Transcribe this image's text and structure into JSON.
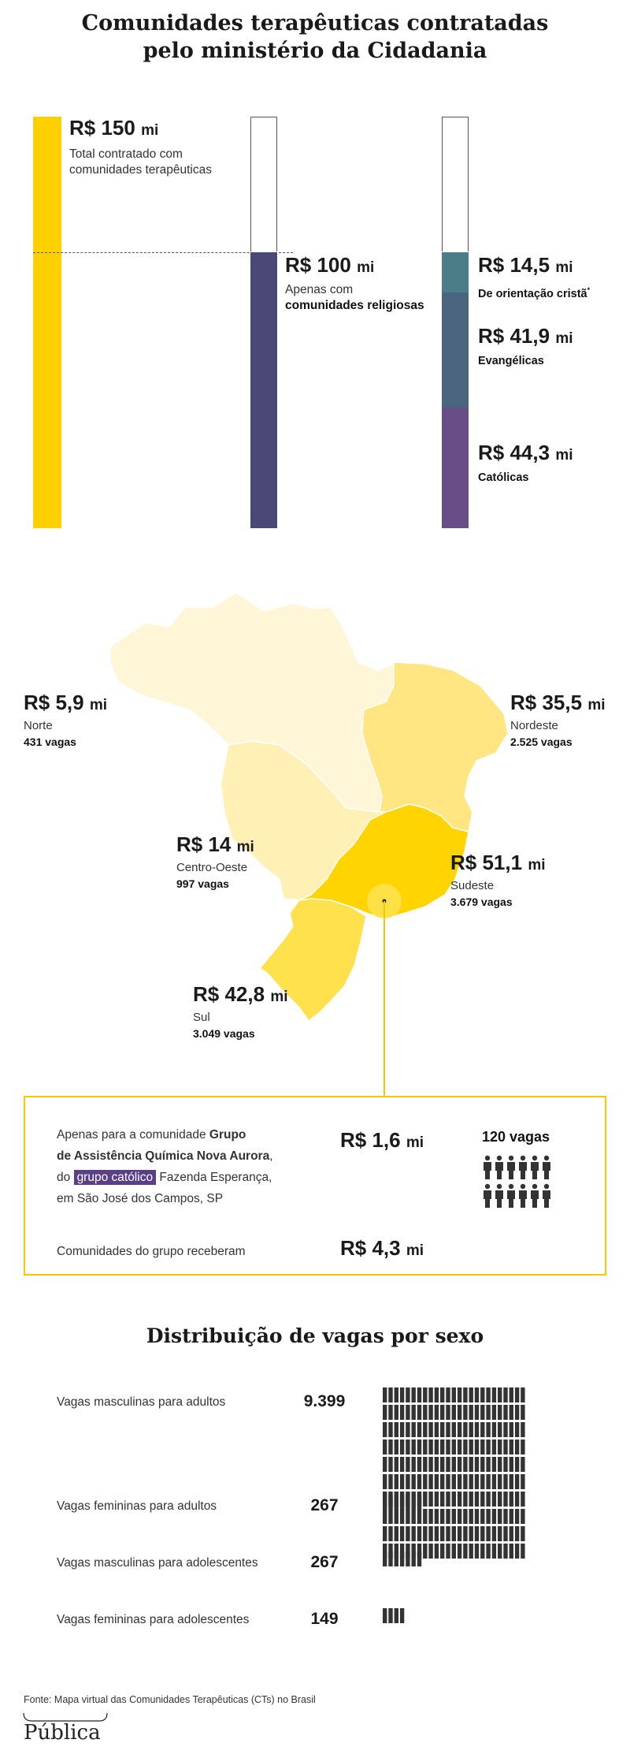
{
  "title_line1": "Comunidades terapêuticas contratadas",
  "title_line2": "pelo ministério da Cidadania",
  "chart_data": [
    {
      "type": "bar",
      "title": "Comunidades terapêuticas contratadas pelo ministério da Cidadania",
      "unit": "R$ mi",
      "ylim": [
        0,
        150
      ],
      "bars": [
        {
          "value": 150,
          "amount": "R$ 150",
          "unit_label": "mi",
          "label": "Total contratado com comunidades terapêuticas",
          "color": "#ffd000"
        },
        {
          "value": 100,
          "amount": "R$ 100",
          "unit_label": "mi",
          "label": "Apenas com",
          "label_bold": "comunidades religiosas",
          "color": "#4a4874"
        },
        {
          "stacked": true,
          "segments": [
            {
              "value": 14.5,
              "amount": "R$ 14,5",
              "unit_label": "mi",
              "label": "De orientação cristã",
              "note": "*",
              "color": "#4a7d87"
            },
            {
              "value": 41.9,
              "amount": "R$ 41,9",
              "unit_label": "mi",
              "label": "Evangélicas",
              "color": "#49657f"
            },
            {
              "value": 44.3,
              "amount": "R$ 44,3",
              "unit_label": "mi",
              "label": "Católicas",
              "color": "#684d86"
            }
          ]
        }
      ]
    },
    {
      "type": "map",
      "regions": [
        {
          "name": "Norte",
          "amount": "R$ 5,9",
          "unit_label": "mi",
          "value": 5.9,
          "vagas": "431 vagas",
          "color": "#fff6d8"
        },
        {
          "name": "Nordeste",
          "amount": "R$ 35,5",
          "unit_label": "mi",
          "value": 35.5,
          "vagas": "2.525 vagas",
          "color": "#ffe683"
        },
        {
          "name": "Centro-Oeste",
          "amount": "R$ 14",
          "unit_label": "mi",
          "value": 14,
          "vagas": "997 vagas",
          "color": "#fff0b5"
        },
        {
          "name": "Sudeste",
          "amount": "R$ 51,1",
          "unit_label": "mi",
          "value": 51.1,
          "vagas": "3.679 vagas",
          "color": "#ffd400"
        },
        {
          "name": "Sul",
          "amount": "R$ 42,8",
          "unit_label": "mi",
          "value": 42.8,
          "vagas": "3.049 vagas",
          "color": "#ffe14d"
        }
      ]
    },
    {
      "type": "bar",
      "title": "Distribuição de vagas por sexo",
      "categories": [
        "Vagas masculinas para adultos",
        "Vagas femininas para adultos",
        "Vagas masculinas para adolescentes",
        "Vagas femininas para adolescentes"
      ],
      "values": [
        9399,
        267,
        267,
        149
      ],
      "value_labels": [
        "9.399",
        "267",
        "267",
        "149"
      ]
    }
  ],
  "callout": {
    "line1_pre": "Apenas para a comunidade ",
    "line1_bold": "Grupo",
    "line2_bold": "de Assistência Química Nova Aurora",
    "line2_post": ",",
    "line3_pre": "do ",
    "line3_highlight": "grupo católico",
    "line3_post": " Fazenda Esperança,",
    "line4": "em São José dos Campos, SP",
    "amount1": "R$ 1,6",
    "amount1_unit": "mi",
    "vagas_label": "120 vagas",
    "line5": "Comunidades do grupo receberam",
    "amount2": "R$ 4,3",
    "amount2_unit": "mi"
  },
  "sex_title": "Distribuição de vagas por sexo",
  "footer_source": "Fonte: Mapa virtual das Comunidades Terapêuticas (CTs) no Brasil",
  "logo_text": "Pública",
  "colors": {
    "yellow": "#ffd000",
    "religious": "#4a4874",
    "crista": "#4a7d87",
    "evangelicas": "#49657f",
    "catolicas": "#684d86",
    "callout_border": "#f5c800",
    "highlight": "#5a3e86"
  }
}
